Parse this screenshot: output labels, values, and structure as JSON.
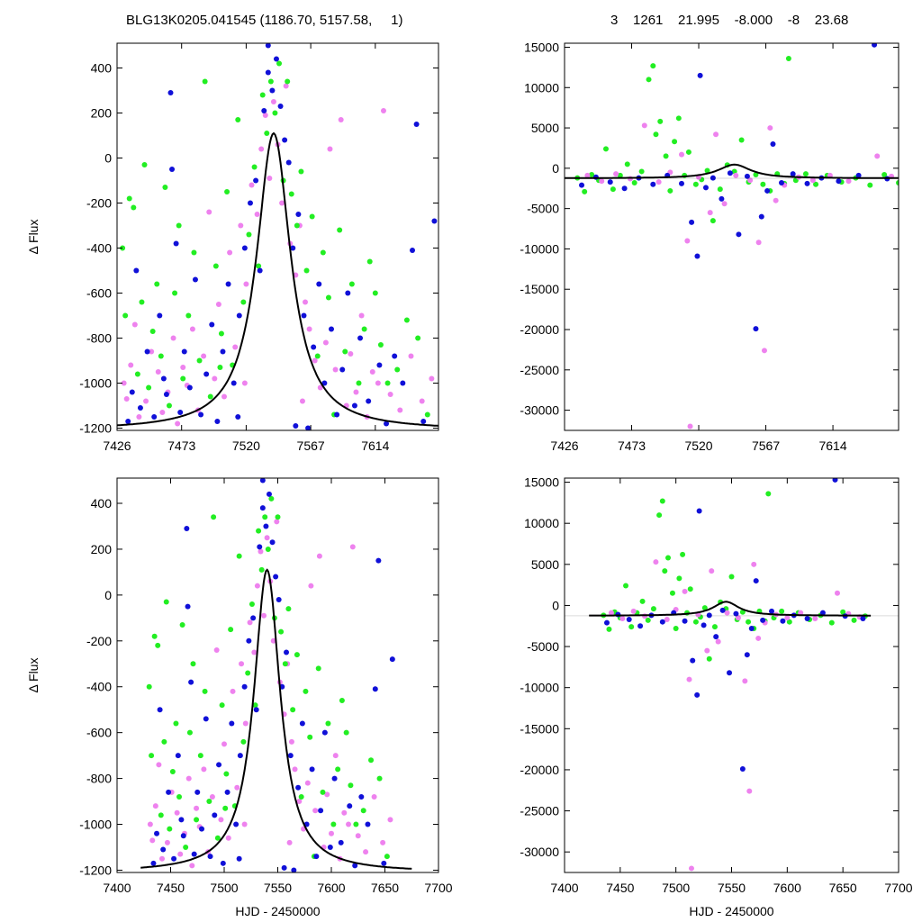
{
  "title_left": "BLG13K0205.041545 (1186.70, 5157.58,     1)",
  "title_right": "3    1261    21.995    -8.000    -8    23.68",
  "colors": {
    "magenta": "#ee82ee",
    "green": "#22ee22",
    "blue": "#1010d8",
    "curve": "#000000"
  },
  "chart_data": [
    {
      "id": "top-left",
      "type": "scatter",
      "xlim": [
        7426,
        7660
      ],
      "ylim": [
        -1210,
        510
      ],
      "xticks": [
        7426,
        7473,
        7520,
        7567,
        7614
      ],
      "yticks": [
        400,
        200,
        0,
        -200,
        -400,
        -600,
        -800,
        -1000,
        -1200
      ],
      "xlabel": "",
      "ylabel": "Δ Flux",
      "model": {
        "peak_x": 7540,
        "base": -1210,
        "amp": 1320,
        "width": 15
      }
    },
    {
      "id": "top-right",
      "type": "scatter",
      "xlim": [
        7426,
        7660
      ],
      "ylim": [
        -32500,
        15500
      ],
      "xticks": [
        7426,
        7473,
        7520,
        7567,
        7614
      ],
      "yticks": [
        15000,
        10000,
        5000,
        0,
        -5000,
        -10000,
        -15000,
        -20000,
        -25000,
        -30000
      ],
      "xlabel": "",
      "ylabel": "",
      "model": {
        "peak_x": 7545,
        "base": -1250,
        "amp": 1700,
        "width": 14
      }
    },
    {
      "id": "bottom-left",
      "type": "scatter",
      "xlim": [
        7400,
        7700
      ],
      "ylim": [
        -1210,
        510
      ],
      "xticks": [
        7400,
        7450,
        7500,
        7550,
        7600,
        7650,
        7700
      ],
      "yticks": [
        400,
        200,
        0,
        -200,
        -400,
        -600,
        -800,
        -1000,
        -1200
      ],
      "xlabel": "HJD - 2450000",
      "ylabel": "Δ Flux",
      "model": {
        "peak_x": 7540,
        "base": -1210,
        "amp": 1320,
        "width": 15
      }
    },
    {
      "id": "bottom-right",
      "type": "scatter",
      "xlim": [
        7400,
        7700
      ],
      "ylim": [
        -32500,
        15500
      ],
      "xticks": [
        7400,
        7450,
        7500,
        7550,
        7600,
        7650,
        7700
      ],
      "yticks": [
        15000,
        10000,
        5000,
        0,
        -5000,
        -10000,
        -15000,
        -20000,
        -25000,
        -30000
      ],
      "xlabel": "HJD - 2450000",
      "ylabel": "",
      "model": {
        "peak_x": 7545,
        "base": -1250,
        "amp": 1700,
        "width": 14
      }
    }
  ],
  "points_zoom": [
    [
      7431,
      -1000,
      "m"
    ],
    [
      7433,
      -1070,
      "m"
    ],
    [
      7436,
      -920,
      "m"
    ],
    [
      7439,
      -740,
      "m"
    ],
    [
      7442,
      -1150,
      "m"
    ],
    [
      7447,
      -1080,
      "m"
    ],
    [
      7451,
      -860,
      "m"
    ],
    [
      7456,
      -950,
      "m"
    ],
    [
      7459,
      -1130,
      "m"
    ],
    [
      7463,
      -1040,
      "m"
    ],
    [
      7467,
      -800,
      "m"
    ],
    [
      7470,
      -1180,
      "m"
    ],
    [
      7474,
      -930,
      "m"
    ],
    [
      7477,
      -1010,
      "m"
    ],
    [
      7481,
      -760,
      "m"
    ],
    [
      7485,
      -1120,
      "m"
    ],
    [
      7489,
      -880,
      "m"
    ],
    [
      7493,
      -240,
      "m"
    ],
    [
      7497,
      -980,
      "m"
    ],
    [
      7500,
      -650,
      "m"
    ],
    [
      7504,
      -1060,
      "m"
    ],
    [
      7508,
      -420,
      "m"
    ],
    [
      7512,
      -840,
      "m"
    ],
    [
      7516,
      -300,
      "m"
    ],
    [
      7520,
      -560,
      "m"
    ],
    [
      7524,
      -120,
      "m"
    ],
    [
      7528,
      -250,
      "m"
    ],
    [
      7531,
      40,
      "m"
    ],
    [
      7534,
      190,
      "m"
    ],
    [
      7537,
      -90,
      "m"
    ],
    [
      7540,
      250,
      "m"
    ],
    [
      7543,
      60,
      "m"
    ],
    [
      7546,
      -200,
      "m"
    ],
    [
      7549,
      320,
      "m"
    ],
    [
      7552,
      -380,
      "m"
    ],
    [
      7556,
      -520,
      "m"
    ],
    [
      7559,
      -300,
      "m"
    ],
    [
      7563,
      -640,
      "m"
    ],
    [
      7566,
      -760,
      "m"
    ],
    [
      7570,
      -900,
      "m"
    ],
    [
      7574,
      -1020,
      "m"
    ],
    [
      7578,
      -820,
      "m"
    ],
    [
      7581,
      40,
      "m"
    ],
    [
      7585,
      -940,
      "m"
    ],
    [
      7589,
      170,
      "m"
    ],
    [
      7593,
      -1100,
      "m"
    ],
    [
      7596,
      -870,
      "m"
    ],
    [
      7600,
      -1040,
      "m"
    ],
    [
      7604,
      -700,
      "m"
    ],
    [
      7608,
      -1150,
      "m"
    ],
    [
      7612,
      -950,
      "m"
    ],
    [
      7616,
      -1000,
      "m"
    ],
    [
      7620,
      210,
      "m"
    ],
    [
      7625,
      -1050,
      "m"
    ],
    [
      7632,
      -1120,
      "m"
    ],
    [
      7640,
      -880,
      "m"
    ],
    [
      7648,
      -1080,
      "m"
    ],
    [
      7655,
      -980,
      "m"
    ],
    [
      7519,
      -1000,
      "m"
    ],
    [
      7561,
      -1080,
      "m"
    ],
    [
      7430,
      -400,
      "g"
    ],
    [
      7432,
      -700,
      "g"
    ],
    [
      7435,
      -180,
      "g"
    ],
    [
      7438,
      -220,
      "g"
    ],
    [
      7441,
      -960,
      "g"
    ],
    [
      7444,
      -640,
      "g"
    ],
    [
      7446,
      -30,
      "g"
    ],
    [
      7449,
      -1020,
      "g"
    ],
    [
      7452,
      -770,
      "g"
    ],
    [
      7455,
      -560,
      "g"
    ],
    [
      7458,
      -880,
      "g"
    ],
    [
      7461,
      -130,
      "g"
    ],
    [
      7464,
      -1100,
      "g"
    ],
    [
      7468,
      -600,
      "g"
    ],
    [
      7471,
      -300,
      "g"
    ],
    [
      7474,
      -980,
      "g"
    ],
    [
      7478,
      -700,
      "g"
    ],
    [
      7482,
      -420,
      "g"
    ],
    [
      7486,
      -900,
      "g"
    ],
    [
      7490,
      340,
      "g"
    ],
    [
      7494,
      -1060,
      "g"
    ],
    [
      7498,
      -480,
      "g"
    ],
    [
      7502,
      -780,
      "g"
    ],
    [
      7506,
      -150,
      "g"
    ],
    [
      7510,
      -920,
      "g"
    ],
    [
      7514,
      170,
      "g"
    ],
    [
      7518,
      -640,
      "g"
    ],
    [
      7522,
      -340,
      "g"
    ],
    [
      7526,
      -40,
      "g"
    ],
    [
      7529,
      -480,
      "g"
    ],
    [
      7532,
      280,
      "g"
    ],
    [
      7535,
      110,
      "g"
    ],
    [
      7538,
      340,
      "g"
    ],
    [
      7541,
      200,
      "g"
    ],
    [
      7544,
      420,
      "g"
    ],
    [
      7547,
      -100,
      "g"
    ],
    [
      7550,
      340,
      "g"
    ],
    [
      7553,
      -160,
      "g"
    ],
    [
      7557,
      -300,
      "g"
    ],
    [
      7560,
      -60,
      "g"
    ],
    [
      7564,
      -500,
      "g"
    ],
    [
      7568,
      -260,
      "g"
    ],
    [
      7572,
      -880,
      "g"
    ],
    [
      7576,
      -420,
      "g"
    ],
    [
      7580,
      -620,
      "g"
    ],
    [
      7584,
      -1140,
      "g"
    ],
    [
      7588,
      -320,
      "g"
    ],
    [
      7592,
      -860,
      "g"
    ],
    [
      7597,
      -560,
      "g"
    ],
    [
      7602,
      -1000,
      "g"
    ],
    [
      7606,
      -760,
      "g"
    ],
    [
      7610,
      -460,
      "g"
    ],
    [
      7614,
      -600,
      "g"
    ],
    [
      7618,
      -830,
      "g"
    ],
    [
      7623,
      -1000,
      "g"
    ],
    [
      7630,
      -940,
      "g"
    ],
    [
      7637,
      -720,
      "g"
    ],
    [
      7645,
      -800,
      "g"
    ],
    [
      7652,
      -1140,
      "g"
    ],
    [
      7501,
      -930,
      "g"
    ],
    [
      7434,
      -1170,
      "b"
    ],
    [
      7437,
      -1040,
      "b"
    ],
    [
      7440,
      -500,
      "b"
    ],
    [
      7443,
      -1110,
      "b"
    ],
    [
      7448,
      -860,
      "b"
    ],
    [
      7453,
      -1150,
      "b"
    ],
    [
      7457,
      -700,
      "b"
    ],
    [
      7460,
      -980,
      "b"
    ],
    [
      7462,
      -1050,
      "b"
    ],
    [
      7465,
      290,
      "b"
    ],
    [
      7466,
      -50,
      "b"
    ],
    [
      7469,
      -380,
      "b"
    ],
    [
      7472,
      -1130,
      "b"
    ],
    [
      7475,
      -860,
      "b"
    ],
    [
      7479,
      -1020,
      "b"
    ],
    [
      7483,
      -540,
      "b"
    ],
    [
      7487,
      -1140,
      "b"
    ],
    [
      7491,
      -960,
      "b"
    ],
    [
      7495,
      -740,
      "b"
    ],
    [
      7499,
      -1170,
      "b"
    ],
    [
      7503,
      -860,
      "b"
    ],
    [
      7507,
      -560,
      "b"
    ],
    [
      7511,
      -1000,
      "b"
    ],
    [
      7515,
      -700,
      "b"
    ],
    [
      7519,
      -400,
      "b"
    ],
    [
      7523,
      -200,
      "b"
    ],
    [
      7527,
      -100,
      "b"
    ],
    [
      7530,
      -500,
      "b"
    ],
    [
      7533,
      210,
      "b"
    ],
    [
      7536,
      380,
      "b"
    ],
    [
      7539,
      300,
      "b"
    ],
    [
      7542,
      440,
      "b"
    ],
    [
      7545,
      230,
      "b"
    ],
    [
      7548,
      80,
      "b"
    ],
    [
      7551,
      -20,
      "b"
    ],
    [
      7554,
      -400,
      "b"
    ],
    [
      7558,
      -250,
      "b"
    ],
    [
      7562,
      -700,
      "b"
    ],
    [
      7565,
      -1200,
      "b"
    ],
    [
      7569,
      -840,
      "b"
    ],
    [
      7573,
      -560,
      "b"
    ],
    [
      7577,
      -1000,
      "b"
    ],
    [
      7582,
      -760,
      "b"
    ],
    [
      7586,
      -1140,
      "b"
    ],
    [
      7590,
      -940,
      "b"
    ],
    [
      7594,
      -600,
      "b"
    ],
    [
      7599,
      -1100,
      "b"
    ],
    [
      7603,
      -800,
      "b"
    ],
    [
      7609,
      -1080,
      "b"
    ],
    [
      7617,
      -920,
      "b"
    ],
    [
      7622,
      -1180,
      "b"
    ],
    [
      7628,
      -880,
      "b"
    ],
    [
      7634,
      -1000,
      "b"
    ],
    [
      7641,
      -410,
      "b"
    ],
    [
      7649,
      -1170,
      "b"
    ],
    [
      7657,
      -280,
      "b"
    ],
    [
      7644,
      150,
      "b"
    ],
    [
      7536,
      500,
      "b"
    ],
    [
      7514,
      -1150,
      "b"
    ],
    [
      7556,
      -1190,
      "b"
    ]
  ],
  "points_full": [
    [
      7435,
      -1200,
      "g"
    ],
    [
      7440,
      -2900,
      "g"
    ],
    [
      7445,
      -800,
      "g"
    ],
    [
      7450,
      -1500,
      "g"
    ],
    [
      7455,
      2400,
      "g"
    ],
    [
      7460,
      -2600,
      "g"
    ],
    [
      7465,
      -900,
      "g"
    ],
    [
      7470,
      500,
      "g"
    ],
    [
      7475,
      -1800,
      "g"
    ],
    [
      7480,
      -400,
      "g"
    ],
    [
      7485,
      11000,
      "g"
    ],
    [
      7488,
      12700,
      "g"
    ],
    [
      7490,
      4200,
      "g"
    ],
    [
      7493,
      5800,
      "g"
    ],
    [
      7497,
      1500,
      "g"
    ],
    [
      7500,
      -2800,
      "g"
    ],
    [
      7503,
      3300,
      "g"
    ],
    [
      7506,
      6200,
      "g"
    ],
    [
      7510,
      -900,
      "g"
    ],
    [
      7513,
      2000,
      "g"
    ],
    [
      7518,
      -2000,
      "g"
    ],
    [
      7522,
      -1400,
      "g"
    ],
    [
      7526,
      -300,
      "g"
    ],
    [
      7530,
      -6500,
      "g"
    ],
    [
      7535,
      -2600,
      "g"
    ],
    [
      7540,
      400,
      "g"
    ],
    [
      7545,
      -400,
      "g"
    ],
    [
      7550,
      3500,
      "g"
    ],
    [
      7555,
      -1700,
      "g"
    ],
    [
      7560,
      -800,
      "g"
    ],
    [
      7565,
      -2000,
      "g"
    ],
    [
      7570,
      -2800,
      "g"
    ],
    [
      7575,
      -700,
      "g"
    ],
    [
      7580,
      -1900,
      "g"
    ],
    [
      7583,
      13600,
      "g"
    ],
    [
      7588,
      -1500,
      "g"
    ],
    [
      7595,
      -700,
      "g"
    ],
    [
      7602,
      -2000,
      "g"
    ],
    [
      7610,
      -900,
      "g"
    ],
    [
      7620,
      -1700,
      "g"
    ],
    [
      7630,
      -1200,
      "g"
    ],
    [
      7640,
      -2100,
      "g"
    ],
    [
      7650,
      -800,
      "g"
    ],
    [
      7660,
      -1800,
      "g"
    ],
    [
      7670,
      -1300,
      "g"
    ],
    [
      7442,
      -900,
      "m"
    ],
    [
      7452,
      -1600,
      "m"
    ],
    [
      7462,
      -700,
      "m"
    ],
    [
      7472,
      -1300,
      "m"
    ],
    [
      7482,
      5300,
      "m"
    ],
    [
      7492,
      -1700,
      "m"
    ],
    [
      7500,
      -500,
      "m"
    ],
    [
      7508,
      1700,
      "m"
    ],
    [
      7512,
      -9000,
      "m"
    ],
    [
      7514,
      -32000,
      "m"
    ],
    [
      7520,
      -1100,
      "m"
    ],
    [
      7528,
      -5500,
      "m"
    ],
    [
      7532,
      4200,
      "m"
    ],
    [
      7538,
      -4400,
      "m"
    ],
    [
      7546,
      -900,
      "m"
    ],
    [
      7556,
      -1500,
      "m"
    ],
    [
      7562,
      -9200,
      "m"
    ],
    [
      7566,
      -22600,
      "m"
    ],
    [
      7570,
      5000,
      "m"
    ],
    [
      7574,
      -4000,
      "m"
    ],
    [
      7580,
      -2100,
      "m"
    ],
    [
      7590,
      -1100,
      "m"
    ],
    [
      7600,
      -1500,
      "m"
    ],
    [
      7612,
      -900,
      "m"
    ],
    [
      7625,
      -1600,
      "m"
    ],
    [
      7645,
      1500,
      "m"
    ],
    [
      7655,
      -1000,
      "m"
    ],
    [
      7665,
      -1400,
      "m"
    ],
    [
      7438,
      -2100,
      "b"
    ],
    [
      7448,
      -1100,
      "b"
    ],
    [
      7458,
      -1700,
      "b"
    ],
    [
      7468,
      -2500,
      "b"
    ],
    [
      7478,
      -1200,
      "b"
    ],
    [
      7488,
      -2000,
      "b"
    ],
    [
      7498,
      -900,
      "b"
    ],
    [
      7508,
      -1900,
      "b"
    ],
    [
      7515,
      -6700,
      "b"
    ],
    [
      7519,
      -10900,
      "b"
    ],
    [
      7521,
      11500,
      "b"
    ],
    [
      7525,
      -2400,
      "b"
    ],
    [
      7530,
      -1200,
      "b"
    ],
    [
      7536,
      -3800,
      "b"
    ],
    [
      7542,
      -600,
      "b"
    ],
    [
      7548,
      -8200,
      "b"
    ],
    [
      7554,
      -1000,
      "b"
    ],
    [
      7560,
      -19900,
      "b"
    ],
    [
      7564,
      -6000,
      "b"
    ],
    [
      7568,
      -2800,
      "b"
    ],
    [
      7572,
      3000,
      "b"
    ],
    [
      7578,
      -1800,
      "b"
    ],
    [
      7586,
      -700,
      "b"
    ],
    [
      7596,
      -1900,
      "b"
    ],
    [
      7606,
      -1200,
      "b"
    ],
    [
      7618,
      -1600,
      "b"
    ],
    [
      7632,
      -900,
      "b"
    ],
    [
      7643,
      15300,
      "b"
    ],
    [
      7652,
      -1300,
      "b"
    ],
    [
      7668,
      -1600,
      "b"
    ]
  ]
}
